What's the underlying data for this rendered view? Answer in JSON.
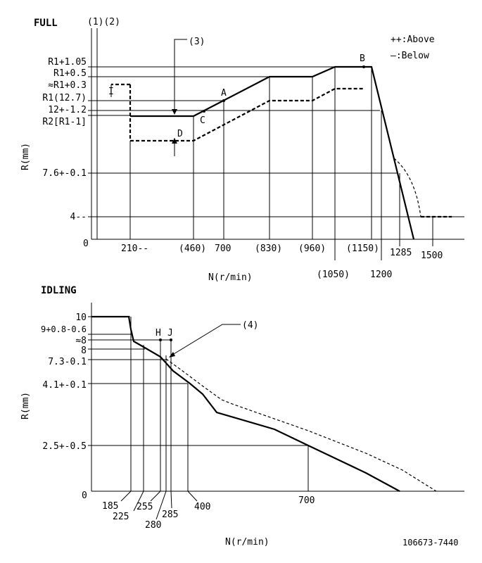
{
  "full": {
    "title": "FULL",
    "legend": {
      "above": "++:Above",
      "below": "—:Below"
    },
    "top_markers": "(1)(2)",
    "marker_3": "(3)",
    "y_axis_label": "R(mm)",
    "x_axis_label": "N(r/min)",
    "origin": "0",
    "y_ticks": [
      "R1+1.05",
      "R1+0.5",
      "≈R1+0.3",
      "R1(12.7)",
      "12+-1.2",
      "R2[R1-1]",
      "7.6+-0.1",
      "4--"
    ],
    "x_ticks_row1": [
      "210--",
      "(460)",
      "700",
      "(830)",
      "(960)",
      "(1150)",
      "1285",
      "1500"
    ],
    "x_ticks_row2": [
      "(1050)",
      "1200"
    ],
    "points": {
      "A": "A",
      "B": "B",
      "C": "C",
      "D": "D",
      "I": "I"
    }
  },
  "idling": {
    "title": "IDLING",
    "marker_4": "(4)",
    "y_axis_label": "R(mm)",
    "x_axis_label": "N(r/min)",
    "origin": "0",
    "y_ticks": [
      "10",
      "9+0.8-0.6",
      "≈8",
      "8",
      "7.3-0.1",
      "4.1+-0.1",
      "2.5+-0.5"
    ],
    "x_ticks": [
      "185",
      "225",
      "255",
      "280",
      "285",
      "400",
      "700"
    ],
    "points": {
      "H": "H",
      "J": "J"
    }
  },
  "footer": {
    "code": "106673-7440"
  }
}
